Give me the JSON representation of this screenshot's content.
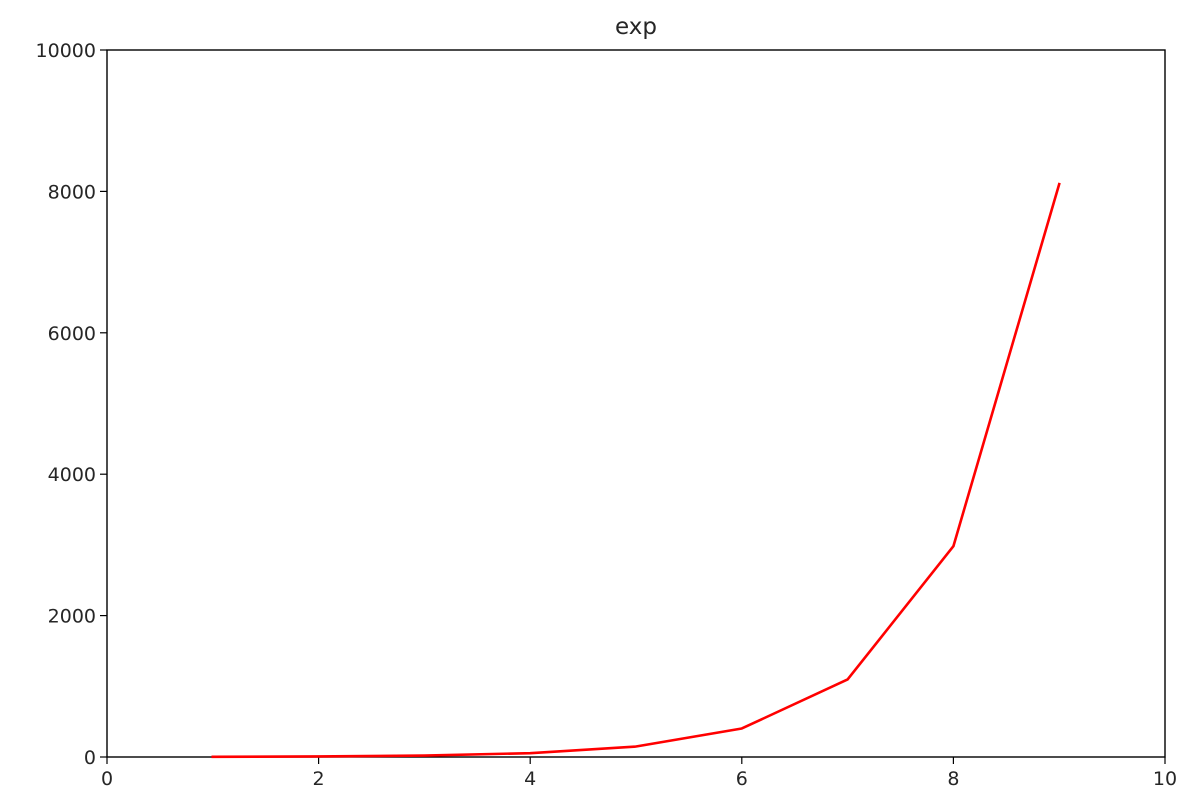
{
  "chart_data": {
    "type": "line",
    "title": "exp",
    "xlabel": "",
    "ylabel": "",
    "xlim": [
      0,
      10
    ],
    "ylim": [
      0,
      10000
    ],
    "x_ticks": [
      0,
      2,
      4,
      6,
      8,
      10
    ],
    "x_tick_labels": [
      "0",
      "2",
      "4",
      "6",
      "8",
      "10"
    ],
    "y_ticks": [
      0,
      2000,
      4000,
      6000,
      8000,
      10000
    ],
    "y_tick_labels": [
      "0",
      "2000",
      "4000",
      "6000",
      "8000",
      "10000"
    ],
    "grid": false,
    "series": [
      {
        "color": "#ff0000",
        "x": [
          1,
          2,
          3,
          4,
          5,
          6,
          7,
          8,
          9
        ],
        "values": [
          2.718,
          7.389,
          20.09,
          54.6,
          148.4,
          403.4,
          1096.6,
          2981.0,
          8103.1
        ]
      }
    ]
  }
}
